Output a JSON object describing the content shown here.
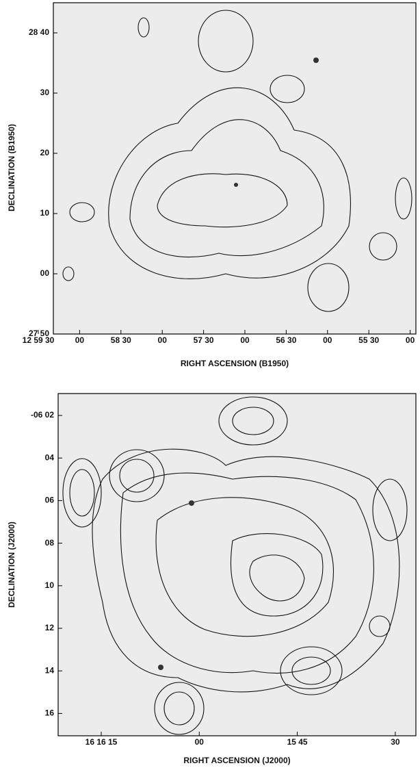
{
  "panels": [
    {
      "y_label": "DECLINATION (B1950)",
      "x_label": "RIGHT ASCENSION (B1950)",
      "y_ticks": [
        "28 40",
        "30",
        "20",
        "10",
        "00",
        "27 50"
      ],
      "x_ticks": [
        "12 59 30",
        "00",
        "58 30",
        "00",
        "57 30",
        "00",
        "56 30",
        "00",
        "55 30",
        "00"
      ]
    },
    {
      "y_label": "DECLINATION (J2000)",
      "x_label": "RIGHT ASCENSION (J2000)",
      "y_ticks": [
        "-06 02",
        "04",
        "06",
        "08",
        "10",
        "12",
        "14",
        "16"
      ],
      "x_ticks": [
        "16 16 15",
        "00",
        "15 45",
        "30"
      ]
    }
  ]
}
